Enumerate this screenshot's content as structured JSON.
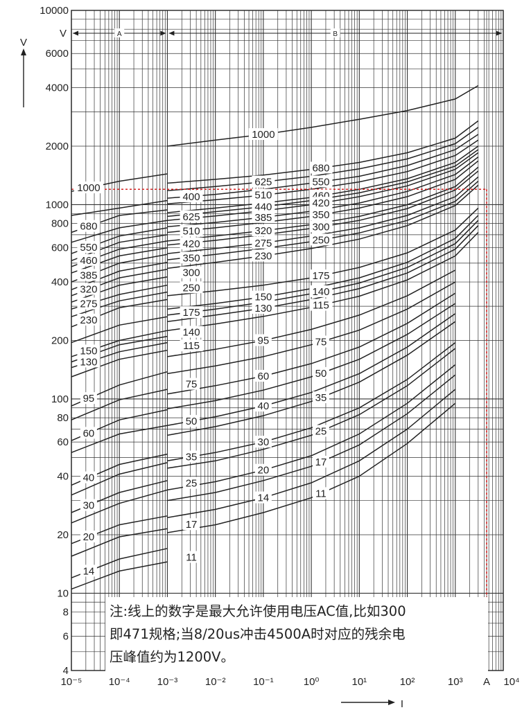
{
  "chart_data": {
    "type": "line",
    "title": "",
    "xlabel": "I",
    "ylabel": "V",
    "x_scale": "log",
    "y_scale": "log",
    "xlim": [
      1e-05,
      10000
    ],
    "ylim": [
      4,
      10000
    ],
    "x_ticks": [
      "10⁻⁵",
      "10⁻⁴",
      "10⁻³",
      "10⁻²",
      "10⁻¹",
      "10⁰",
      "10¹",
      "10²",
      "10³",
      "A",
      "10⁴"
    ],
    "y_ticks": [
      {
        "v": 10000,
        "label": "10000"
      },
      {
        "v": 6000,
        "label": "6000"
      },
      {
        "v": 4000,
        "label": "4000"
      },
      {
        "v": 2000,
        "label": "2000"
      },
      {
        "v": 1000,
        "label": "1000"
      },
      {
        "v": 800,
        "label": "800"
      },
      {
        "v": 600,
        "label": "600"
      },
      {
        "v": 400,
        "label": "400"
      },
      {
        "v": 200,
        "label": "200"
      },
      {
        "v": 100,
        "label": "100"
      },
      {
        "v": 80,
        "label": "80"
      },
      {
        "v": 60,
        "label": "60"
      },
      {
        "v": 40,
        "label": "40"
      },
      {
        "v": 20,
        "label": "20"
      },
      {
        "v": 10,
        "label": "10"
      },
      {
        "v": 8,
        "label": "8"
      },
      {
        "v": 6,
        "label": "6"
      },
      {
        "v": 4,
        "label": "4"
      }
    ],
    "v_marker_label": "V",
    "regions": [
      {
        "label": "A",
        "from": 1e-05,
        "to": 0.001
      },
      {
        "label": "B",
        "from": 0.001,
        "to": 10000
      }
    ],
    "reference": {
      "x": 4500,
      "y": 1200
    },
    "grid": true,
    "region_a_series": [
      {
        "label": "1000",
        "x": [
          1e-05,
          0.0001,
          0.001
        ],
        "y": [
          1170,
          1320,
          1440
        ]
      },
      {
        "label": "400",
        "x": [
          1e-05,
          0.0001,
          0.001
        ],
        "y": [
          880,
          960,
          1050
        ]
      },
      {
        "label": "680",
        "x": [
          1e-05,
          0.0001,
          0.001
        ],
        "y": [
          720,
          880,
          940
        ]
      },
      {
        "label": "625",
        "x": [
          1e-05,
          0.0001,
          0.001
        ],
        "y": [
          640,
          760,
          830
        ]
      },
      {
        "label": "550",
        "x": [
          1e-05,
          0.0001,
          0.001
        ],
        "y": [
          560,
          690,
          760
        ]
      },
      {
        "label": "510",
        "x": [
          1e-05,
          0.0001,
          0.001
        ],
        "y": [
          515,
          640,
          700
        ]
      },
      {
        "label": "460",
        "x": [
          1e-05,
          0.0001,
          0.001
        ],
        "y": [
          480,
          590,
          650
        ]
      },
      {
        "label": "420",
        "x": [
          1e-05,
          0.0001,
          0.001
        ],
        "y": [
          445,
          545,
          600
        ]
      },
      {
        "label": "385",
        "x": [
          1e-05,
          0.0001,
          0.001
        ],
        "y": [
          400,
          500,
          555
        ]
      },
      {
        "label": "350",
        "x": [
          1e-05,
          0.0001,
          0.001
        ],
        "y": [
          365,
          455,
          505
        ]
      },
      {
        "label": "320",
        "x": [
          1e-05,
          0.0001,
          0.001
        ],
        "y": [
          340,
          420,
          465
        ]
      },
      {
        "label": "300",
        "x": [
          1e-05,
          0.0001,
          0.001
        ],
        "y": [
          315,
          385,
          425
        ]
      },
      {
        "label": "275",
        "x": [
          1e-05,
          0.0001,
          0.001
        ],
        "y": [
          290,
          345,
          385
        ]
      },
      {
        "label": "250",
        "x": [
          1e-05,
          0.0001,
          0.001
        ],
        "y": [
          265,
          320,
          355
        ]
      },
      {
        "label": "230",
        "x": [
          1e-05,
          0.0001,
          0.001
        ],
        "y": [
          235,
          295,
          325
        ]
      },
      {
        "label": "175",
        "x": [
          1e-05,
          0.0001,
          0.001
        ],
        "y": [
          195,
          240,
          265
        ]
      },
      {
        "label": "150",
        "x": [
          1e-05,
          0.0001,
          0.001
        ],
        "y": [
          165,
          200,
          225
        ]
      },
      {
        "label": "140",
        "x": [
          1e-05,
          0.0001,
          0.001
        ],
        "y": [
          155,
          190,
          210
        ]
      },
      {
        "label": "130",
        "x": [
          1e-05,
          0.0001,
          0.001
        ],
        "y": [
          145,
          175,
          195
        ]
      },
      {
        "label": "115",
        "x": [
          1e-05,
          0.0001,
          0.001
        ],
        "y": [
          130,
          160,
          178
        ]
      },
      {
        "label": "95",
        "x": [
          1e-05,
          0.0001,
          0.001
        ],
        "y": [
          92,
          118,
          138
        ]
      },
      {
        "label": "75",
        "x": [
          1e-05,
          0.0001,
          0.001
        ],
        "y": [
          78,
          99,
          112
        ]
      },
      {
        "label": "60",
        "x": [
          1e-05,
          0.0001,
          0.001
        ],
        "y": [
          61,
          78,
          88
        ]
      },
      {
        "label": "50",
        "x": [
          1e-05,
          0.0001,
          0.001
        ],
        "y": [
          53,
          66,
          73
        ]
      },
      {
        "label": "40",
        "x": [
          1e-05,
          0.0001,
          0.001
        ],
        "y": [
          36,
          46,
          52
        ]
      },
      {
        "label": "35",
        "x": [
          1e-05,
          0.0001,
          0.001
        ],
        "y": [
          32,
          41,
          47
        ]
      },
      {
        "label": "30",
        "x": [
          1e-05,
          0.0001,
          0.001
        ],
        "y": [
          26,
          33,
          38
        ]
      },
      {
        "label": "25",
        "x": [
          1e-05,
          0.0001,
          0.001
        ],
        "y": [
          23,
          29,
          34
        ]
      },
      {
        "label": "20",
        "x": [
          1e-05,
          0.0001,
          0.001
        ],
        "y": [
          18,
          22.5,
          25
        ]
      },
      {
        "label": "17",
        "x": [
          1e-05,
          0.0001,
          0.001
        ],
        "y": [
          15.5,
          19.5,
          21.5
        ]
      },
      {
        "label": "14",
        "x": [
          1e-05,
          0.0001,
          0.001
        ],
        "y": [
          12,
          15,
          17
        ]
      },
      {
        "label": "11",
        "x": [
          1e-05,
          0.0001,
          0.001
        ],
        "y": [
          10.5,
          13,
          14.5
        ]
      }
    ],
    "region_b_series": [
      {
        "label": "1000",
        "x": [
          0.001,
          0.01,
          0.1,
          1,
          10,
          100,
          1000,
          3000
        ],
        "y": [
          2000,
          2150,
          2300,
          2500,
          2750,
          3050,
          3500,
          4100
        ]
      },
      {
        "label": "680",
        "x": [
          0.001,
          0.01,
          0.1,
          1,
          10,
          100,
          1000,
          3000
        ],
        "y": [
          1290,
          1350,
          1420,
          1520,
          1650,
          1850,
          2200,
          2700
        ]
      },
      {
        "label": "625",
        "x": [
          0.001,
          0.01,
          0.1,
          1,
          10,
          100,
          1000,
          3000
        ],
        "y": [
          1180,
          1240,
          1310,
          1400,
          1530,
          1720,
          2060,
          2500
        ]
      },
      {
        "label": "550",
        "x": [
          0.001,
          0.01,
          0.1,
          1,
          10,
          100,
          1000,
          3000
        ],
        "y": [
          1080,
          1130,
          1200,
          1290,
          1400,
          1590,
          1920,
          2300
        ]
      },
      {
        "label": "510",
        "x": [
          0.001,
          0.01,
          0.1,
          1,
          10,
          100,
          1000,
          3000
        ],
        "y": [
          1010,
          1060,
          1120,
          1200,
          1310,
          1480,
          1790,
          2150
        ]
      },
      {
        "label": "460",
        "x": [
          0.001,
          0.01,
          0.1,
          1,
          10,
          100,
          1000,
          3000
        ],
        "y": [
          910,
          960,
          1020,
          1090,
          1200,
          1360,
          1650,
          2000
        ]
      },
      {
        "label": "440",
        "x": [
          0.001,
          0.01,
          0.1,
          1,
          10,
          100,
          1000,
          3000
        ],
        "y": [
          870,
          920,
          975,
          1050,
          1150,
          1310,
          1580,
          1920
        ]
      },
      {
        "label": "420",
        "x": [
          0.001,
          0.01,
          0.1,
          1,
          10,
          100,
          1000,
          3000
        ],
        "y": [
          830,
          875,
          930,
          1000,
          1100,
          1250,
          1520,
          1850
        ]
      },
      {
        "label": "385",
        "x": [
          0.001,
          0.01,
          0.1,
          1,
          10,
          100,
          1000,
          3000
        ],
        "y": [
          770,
          810,
          860,
          925,
          1020,
          1170,
          1430,
          1760
        ]
      },
      {
        "label": "350",
        "x": [
          0.001,
          0.01,
          0.1,
          1,
          10,
          100,
          1000,
          3000
        ],
        "y": [
          720,
          760,
          810,
          870,
          960,
          1100,
          1350,
          1680
        ]
      },
      {
        "label": "320",
        "x": [
          0.001,
          0.01,
          0.1,
          1,
          10,
          100,
          1000,
          3000
        ],
        "y": [
          650,
          690,
          735,
          790,
          870,
          1000,
          1240,
          1560
        ]
      },
      {
        "label": "300",
        "x": [
          0.001,
          0.01,
          0.1,
          1,
          10,
          100,
          1000,
          3000
        ],
        "y": [
          620,
          655,
          700,
          755,
          830,
          955,
          1190,
          1490
        ]
      },
      {
        "label": "275",
        "x": [
          0.001,
          0.01,
          0.1,
          1,
          10,
          100,
          1000,
          3000
        ],
        "y": [
          560,
          595,
          635,
          690,
          760,
          880,
          1100,
          1390
        ]
      },
      {
        "label": "250",
        "x": [
          0.001,
          0.01,
          0.1,
          1,
          10,
          100,
          1000,
          3000
        ],
        "y": [
          520,
          555,
          595,
          645,
          715,
          830,
          1040,
          1320
        ]
      },
      {
        "label": "230",
        "x": [
          0.001,
          0.01,
          0.1,
          1,
          10,
          100,
          1000,
          3000
        ],
        "y": [
          470,
          505,
          545,
          595,
          665,
          780,
          990,
          1260
        ]
      },
      {
        "label": "175",
        "x": [
          0.001,
          0.01,
          0.1,
          1,
          10,
          100,
          1000,
          3000
        ],
        "y": [
          340,
          360,
          385,
          420,
          475,
          565,
          740,
          960
        ]
      },
      {
        "label": "150",
        "x": [
          0.001,
          0.01,
          0.1,
          1,
          10,
          100,
          1000,
          3000
        ],
        "y": [
          290,
          310,
          335,
          370,
          420,
          505,
          670,
          880
        ]
      },
      {
        "label": "140",
        "x": [
          0.001,
          0.01,
          0.1,
          1,
          10,
          100,
          1000,
          3000
        ],
        "y": [
          270,
          290,
          315,
          348,
          395,
          475,
          630,
          830
        ]
      },
      {
        "label": "130",
        "x": [
          0.001,
          0.01,
          0.1,
          1,
          10,
          100,
          1000,
          3000
        ],
        "y": [
          250,
          270,
          293,
          325,
          370,
          445,
          590,
          780
        ]
      },
      {
        "label": "115",
        "x": [
          0.001,
          0.01,
          0.1,
          1,
          10,
          100,
          1000,
          3000
        ],
        "y": [
          225,
          243,
          266,
          296,
          338,
          410,
          545,
          720
        ]
      },
      {
        "label": "95",
        "x": [
          0.001,
          0.01,
          0.1,
          1,
          10,
          100,
          1000
        ],
        "y": [
          165,
          180,
          200,
          228,
          270,
          340,
          460
        ]
      },
      {
        "label": "75",
        "x": [
          0.001,
          0.01,
          0.1,
          1,
          10,
          100,
          1000
        ],
        "y": [
          135,
          148,
          165,
          190,
          226,
          290,
          400
        ]
      },
      {
        "label": "60",
        "x": [
          0.001,
          0.01,
          0.1,
          1,
          10,
          100,
          1000
        ],
        "y": [
          106,
          117,
          131,
          152,
          185,
          245,
          350
        ]
      },
      {
        "label": "50",
        "x": [
          0.001,
          0.01,
          0.1,
          1,
          10,
          100,
          1000
        ],
        "y": [
          89,
          98,
          111,
          130,
          160,
          215,
          310
        ]
      },
      {
        "label": "40",
        "x": [
          0.001,
          0.01,
          0.1,
          1,
          10,
          100,
          1000
        ],
        "y": [
          73,
          81,
          92,
          108,
          135,
          185,
          275
        ]
      },
      {
        "label": "35",
        "x": [
          0.001,
          0.01,
          0.1,
          1,
          10,
          100,
          1000
        ],
        "y": [
          65,
          72,
          82,
          97,
          122,
          168,
          250
        ]
      },
      {
        "label": "30",
        "x": [
          0.001,
          0.01,
          0.1,
          1,
          10,
          100,
          1000
        ],
        "y": [
          48,
          53,
          60,
          71,
          90,
          126,
          195
        ]
      },
      {
        "label": "25",
        "x": [
          0.001,
          0.01,
          0.1,
          1,
          10,
          100,
          1000
        ],
        "y": [
          44,
          48,
          55,
          65,
          83,
          117,
          182
        ]
      },
      {
        "label": "20",
        "x": [
          0.001,
          0.01,
          0.1,
          1,
          10,
          100,
          1000
        ],
        "y": [
          34,
          37.5,
          43,
          51,
          66,
          95,
          150
        ]
      },
      {
        "label": "17",
        "x": [
          0.001,
          0.01,
          0.1,
          1,
          10,
          100,
          1000
        ],
        "y": [
          30,
          33,
          38,
          45,
          58,
          84,
          133
        ]
      },
      {
        "label": "14",
        "x": [
          0.001,
          0.01,
          0.1,
          1,
          10,
          100,
          1000
        ],
        "y": [
          24.5,
          27,
          31,
          37,
          48,
          70,
          112
        ]
      },
      {
        "label": "11",
        "x": [
          0.001,
          0.01,
          0.1,
          1,
          10,
          100,
          1000
        ],
        "y": [
          20.5,
          22.5,
          26,
          31,
          40,
          59,
          95
        ]
      }
    ],
    "colors": {
      "line": "#222222",
      "grid": "#333333",
      "reference": "#d42020"
    }
  },
  "note": {
    "lines": [
      "注:线上的数字是最大允许使用电压AC值,比如300",
      "即471规格;当8/20us冲击4500A时对应的残余电",
      "压峰值约为1200V。"
    ]
  }
}
